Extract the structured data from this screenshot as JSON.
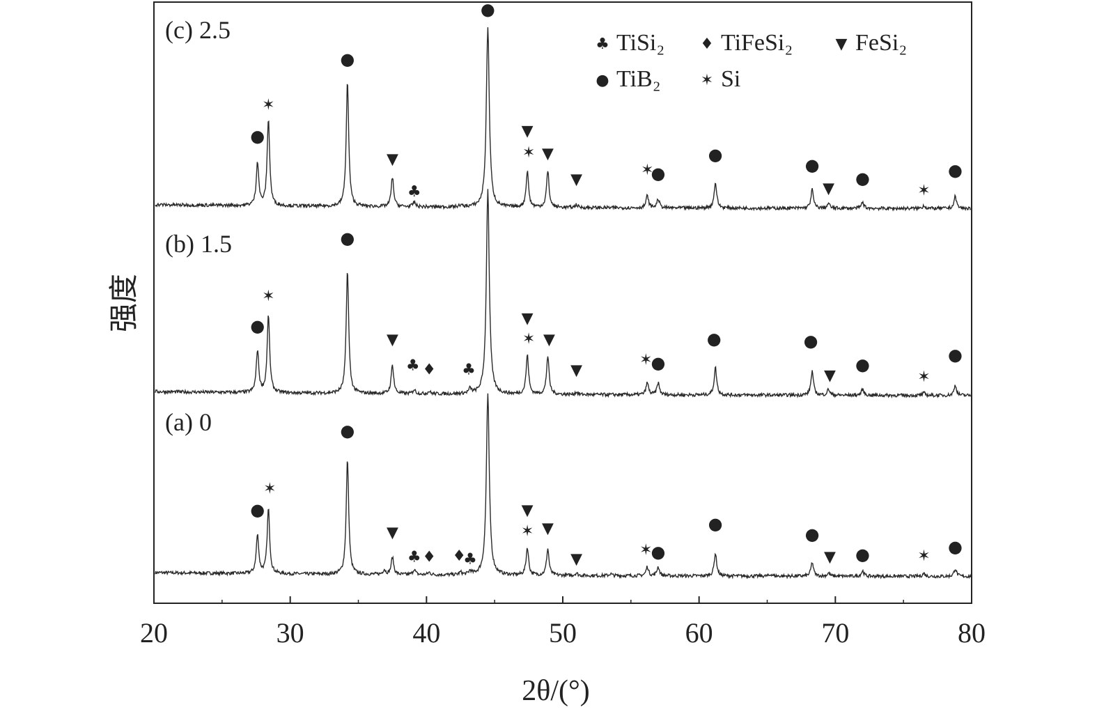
{
  "chart_data": {
    "type": "line",
    "title": "",
    "xlabel": "2θ/(°)",
    "ylabel": "强度",
    "xlim": [
      20,
      80
    ],
    "ylim": [
      0,
      100
    ],
    "xticks": [
      20,
      30,
      40,
      50,
      60,
      70,
      80
    ],
    "grid": false,
    "legend_position": "top-right",
    "legend": [
      {
        "phase": "TiSi2",
        "label": "TiSi₂",
        "symbol": "♣"
      },
      {
        "phase": "TiFeSi2",
        "label": "TiFeSi₂",
        "symbol": "♦"
      },
      {
        "phase": "FeSi2",
        "label": "FeSi₂",
        "symbol": "▼"
      },
      {
        "phase": "TiB2",
        "label": "TiB₂",
        "symbol": "●"
      },
      {
        "phase": "Si",
        "label": "Si",
        "symbol": "✶"
      }
    ],
    "series": [
      {
        "name": "(a) 0",
        "baseline": 4.4,
        "peaks": [
          [
            27.6,
            6.4
          ],
          [
            28.4,
            10.8
          ],
          [
            34.2,
            19.2
          ],
          [
            36.9,
            0.8
          ],
          [
            37.5,
            2.9
          ],
          [
            39.1,
            0.9
          ],
          [
            40.2,
            0.4
          ],
          [
            42.5,
            0.4
          ],
          [
            43.2,
            0.6
          ],
          [
            44.5,
            30
          ],
          [
            47.4,
            4.6
          ],
          [
            48.9,
            4.4
          ],
          [
            51.0,
            0.4
          ],
          [
            53.5,
            0.3
          ],
          [
            56.2,
            1.5
          ],
          [
            57.0,
            1.5
          ],
          [
            61.2,
            3.8
          ],
          [
            65.3,
            0.3
          ],
          [
            68.3,
            2.3
          ],
          [
            69.5,
            0.5
          ],
          [
            72.0,
            0.9
          ],
          [
            76.5,
            0.5
          ],
          [
            78.8,
            1.3
          ]
        ],
        "markers": [
          [
            "TiB2",
            27.6,
            15.5
          ],
          [
            "Si",
            28.5,
            19.2
          ],
          [
            "TiB2",
            34.2,
            28.7
          ],
          [
            "FeSi2",
            37.5,
            11.9
          ],
          [
            "TiSi2",
            39.1,
            7.8
          ],
          [
            "TiFeSi2",
            40.2,
            7.8
          ],
          [
            "TiFeSi2",
            42.4,
            8.0
          ],
          [
            "TiSi2",
            43.2,
            7.5
          ],
          [
            "FeSi2",
            47.4,
            15.6
          ],
          [
            "Si",
            47.4,
            12.1
          ],
          [
            "FeSi2",
            48.9,
            12.6
          ],
          [
            "FeSi2",
            51.0,
            7.5
          ],
          [
            "Si",
            56.1,
            9.0
          ],
          [
            "TiB2",
            57.0,
            8.5
          ],
          [
            "TiB2",
            61.2,
            13.2
          ],
          [
            "TiB2",
            68.3,
            11.5
          ],
          [
            "FeSi2",
            69.6,
            7.8
          ],
          [
            "TiB2",
            72.0,
            8.1
          ],
          [
            "Si",
            76.5,
            8.0
          ],
          [
            "TiB2",
            78.8,
            9.4
          ]
        ]
      },
      {
        "name": "(b) 1.5",
        "baseline": 34.5,
        "peaks": [
          [
            27.6,
            7.0
          ],
          [
            28.4,
            12.9
          ],
          [
            34.2,
            20.6
          ],
          [
            37.5,
            4.8
          ],
          [
            39.1,
            0.7
          ],
          [
            40.2,
            0.4
          ],
          [
            43.2,
            0.8
          ],
          [
            44.5,
            34
          ],
          [
            47.4,
            6.5
          ],
          [
            48.9,
            6.4
          ],
          [
            51.0,
            0.4
          ],
          [
            56.2,
            2.0
          ],
          [
            57.0,
            2.0
          ],
          [
            61.2,
            4.6
          ],
          [
            68.3,
            4.0
          ],
          [
            69.5,
            1.0
          ],
          [
            72.0,
            1.0
          ],
          [
            76.5,
            0.4
          ],
          [
            78.8,
            1.7
          ]
        ],
        "markers": [
          [
            "TiB2",
            27.6,
            46.1
          ],
          [
            "Si",
            28.4,
            51.2
          ],
          [
            "TiB2",
            34.2,
            60.7
          ],
          [
            "FeSi2",
            37.5,
            44.0
          ],
          [
            "TiSi2",
            39.0,
            39.7
          ],
          [
            "TiFeSi2",
            40.2,
            39.0
          ],
          [
            "TiSi2",
            43.1,
            39.0
          ],
          [
            "FeSi2",
            47.4,
            47.5
          ],
          [
            "Si",
            47.5,
            44.1
          ],
          [
            "FeSi2",
            49.0,
            44.0
          ],
          [
            "FeSi2",
            51.0,
            38.9
          ],
          [
            "Si",
            56.1,
            40.6
          ],
          [
            "TiB2",
            57.0,
            40.0
          ],
          [
            "TiB2",
            61.1,
            44.0
          ],
          [
            "TiB2",
            68.2,
            43.6
          ],
          [
            "FeSi2",
            69.6,
            38.0
          ],
          [
            "TiB2",
            72.0,
            39.7
          ],
          [
            "Si",
            76.5,
            37.8
          ],
          [
            "TiB2",
            78.8,
            41.3
          ]
        ]
      },
      {
        "name": "(c) 2.5",
        "baseline": 65.6,
        "peaks": [
          [
            27.6,
            7.2
          ],
          [
            28.4,
            14.5
          ],
          [
            34.2,
            20.8
          ],
          [
            37.5,
            4.9
          ],
          [
            39.1,
            0.8
          ],
          [
            42.5,
            0.3
          ],
          [
            44.5,
            30
          ],
          [
            47.4,
            6.0
          ],
          [
            48.9,
            6.0
          ],
          [
            51.0,
            0.5
          ],
          [
            56.2,
            2.0
          ],
          [
            57.0,
            1.5
          ],
          [
            61.2,
            4.3
          ],
          [
            68.3,
            3.1
          ],
          [
            69.5,
            0.8
          ],
          [
            72.0,
            1.0
          ],
          [
            76.5,
            0.5
          ],
          [
            78.8,
            2.0
          ]
        ],
        "markers": [
          [
            "TiB2",
            27.6,
            77.7
          ],
          [
            "Si",
            28.4,
            83.0
          ],
          [
            "TiB2",
            34.2,
            90.5
          ],
          [
            "TiB2",
            44.5,
            98.8
          ],
          [
            "FeSi2",
            37.5,
            74.0
          ],
          [
            "TiSi2",
            39.1,
            68.6
          ],
          [
            "FeSi2",
            47.4,
            78.7
          ],
          [
            "Si",
            47.5,
            75.1
          ],
          [
            "FeSi2",
            48.9,
            74.9
          ],
          [
            "FeSi2",
            51.0,
            70.6
          ],
          [
            "Si",
            56.2,
            72.2
          ],
          [
            "TiB2",
            57.0,
            71.5
          ],
          [
            "TiB2",
            61.2,
            74.6
          ],
          [
            "TiB2",
            68.3,
            72.9
          ],
          [
            "FeSi2",
            69.5,
            69.1
          ],
          [
            "TiB2",
            72.0,
            70.7
          ],
          [
            "Si",
            76.5,
            68.8
          ],
          [
            "TiB2",
            78.8,
            72.0
          ]
        ]
      }
    ]
  }
}
